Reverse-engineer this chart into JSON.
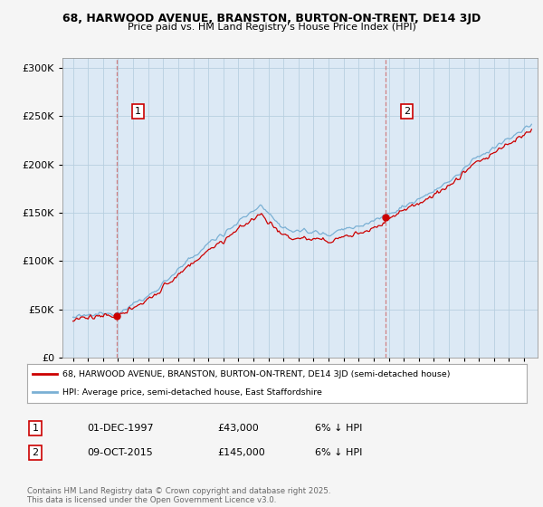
{
  "title1": "68, HARWOOD AVENUE, BRANSTON, BURTON-ON-TRENT, DE14 3JD",
  "title2": "Price paid vs. HM Land Registry's House Price Index (HPI)",
  "legend_line1": "68, HARWOOD AVENUE, BRANSTON, BURTON-ON-TRENT, DE14 3JD (semi-detached house)",
  "legend_line2": "HPI: Average price, semi-detached house, East Staffordshire",
  "sale1_date": "01-DEC-1997",
  "sale1_price": "£43,000",
  "sale1_hpi": "6% ↓ HPI",
  "sale2_date": "09-OCT-2015",
  "sale2_price": "£145,000",
  "sale2_hpi": "6% ↓ HPI",
  "footer": "Contains HM Land Registry data © Crown copyright and database right 2025.\nThis data is licensed under the Open Government Licence v3.0.",
  "ylim": [
    0,
    310000
  ],
  "yticks": [
    0,
    50000,
    100000,
    150000,
    200000,
    250000,
    300000
  ],
  "sale1_year": 1997.92,
  "sale2_year": 2015.77,
  "red_color": "#cc0000",
  "blue_color": "#7ab0d4",
  "dashed_color": "#cc6666",
  "background_chart": "#dce9f5",
  "background_outer": "#f5f5f5",
  "grid_color": "#b8cfe0"
}
